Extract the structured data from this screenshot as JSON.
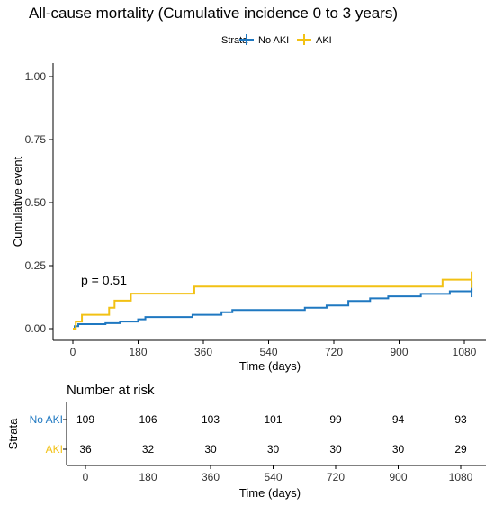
{
  "title": "All-cause mortality (Cumulative incidence 0 to 3 years)",
  "legend": {
    "title": "Strata",
    "placement": "top",
    "entries": [
      {
        "label": "No AKI",
        "color": "#1f78c1"
      },
      {
        "label": "AKI",
        "color": "#f2c114"
      }
    ]
  },
  "chart_data": [
    {
      "type": "line",
      "subtype": "step",
      "title": "All-cause mortality (Cumulative incidence 0 to 3 years)",
      "xlabel": "Time (days)",
      "ylabel": "Cumulative event",
      "xlim": [
        0,
        1100
      ],
      "ylim": [
        0,
        1.0
      ],
      "xticks": [
        0,
        180,
        360,
        540,
        720,
        900,
        1080
      ],
      "yticks": [
        0.0,
        0.25,
        0.5,
        0.75,
        1.0
      ],
      "ytick_labels": [
        "0.00",
        "0.25",
        "0.50",
        "0.75",
        "1.00"
      ],
      "grid": false,
      "legend_position": "top",
      "annotation": "p = 0.51",
      "series": [
        {
          "name": "No AKI",
          "color": "#1f78c1",
          "steps": [
            [
              0,
              0.0
            ],
            [
              5,
              0.01
            ],
            [
              15,
              0.018
            ],
            [
              90,
              0.022
            ],
            [
              130,
              0.028
            ],
            [
              180,
              0.037
            ],
            [
              200,
              0.046
            ],
            [
              330,
              0.055
            ],
            [
              410,
              0.065
            ],
            [
              440,
              0.074
            ],
            [
              540,
              0.074
            ],
            [
              640,
              0.083
            ],
            [
              700,
              0.092
            ],
            [
              760,
              0.11
            ],
            [
              820,
              0.12
            ],
            [
              870,
              0.128
            ],
            [
              960,
              0.138
            ],
            [
              1040,
              0.148
            ],
            [
              1100,
              0.157
            ]
          ],
          "censor_x": [
            1100
          ]
        },
        {
          "name": "AKI",
          "color": "#f2c114",
          "steps": [
            [
              0,
              0.0
            ],
            [
              8,
              0.028
            ],
            [
              25,
              0.055
            ],
            [
              100,
              0.083
            ],
            [
              115,
              0.111
            ],
            [
              160,
              0.139
            ],
            [
              335,
              0.167
            ],
            [
              1020,
              0.194
            ],
            [
              1100,
              0.194
            ]
          ],
          "censor_x": [
            1100
          ]
        }
      ]
    },
    {
      "type": "table",
      "title": "Number at risk",
      "xlabel": "Time (days)",
      "ylabel": "Strata",
      "x": [
        0,
        180,
        360,
        540,
        720,
        900,
        1080
      ],
      "rows": [
        {
          "name": "No AKI",
          "color": "#1f78c1",
          "values": [
            109,
            106,
            103,
            101,
            99,
            94,
            93
          ]
        },
        {
          "name": "AKI",
          "color": "#f2c114",
          "values": [
            36,
            32,
            30,
            30,
            30,
            30,
            29
          ]
        }
      ]
    }
  ]
}
